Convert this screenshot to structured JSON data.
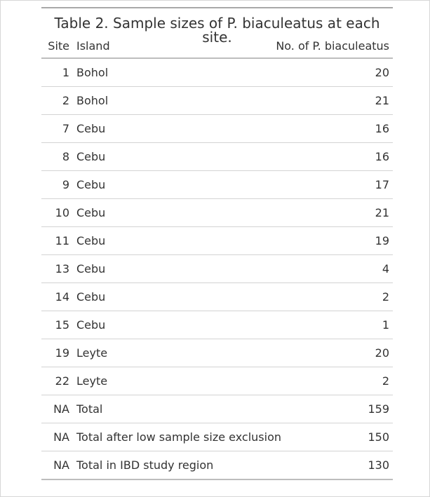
{
  "table": {
    "caption": "Table 2. Sample sizes of P. biaculeatus at each site.",
    "headers": {
      "site": "Site",
      "island": "Island",
      "count": "No. of P. biaculeatus"
    },
    "rows": [
      {
        "site": "1",
        "island": "Bohol",
        "count": "20"
      },
      {
        "site": "2",
        "island": "Bohol",
        "count": "21"
      },
      {
        "site": "7",
        "island": "Cebu",
        "count": "16"
      },
      {
        "site": "8",
        "island": "Cebu",
        "count": "16"
      },
      {
        "site": "9",
        "island": "Cebu",
        "count": "17"
      },
      {
        "site": "10",
        "island": "Cebu",
        "count": "21"
      },
      {
        "site": "11",
        "island": "Cebu",
        "count": "19"
      },
      {
        "site": "13",
        "island": "Cebu",
        "count": "4"
      },
      {
        "site": "14",
        "island": "Cebu",
        "count": "2"
      },
      {
        "site": "15",
        "island": "Cebu",
        "count": "1"
      },
      {
        "site": "19",
        "island": "Leyte",
        "count": "20"
      },
      {
        "site": "22",
        "island": "Leyte",
        "count": "2"
      },
      {
        "site": "NA",
        "island": "Total",
        "count": "159"
      },
      {
        "site": "NA",
        "island": "Total after low sample size exclusion",
        "count": "150"
      },
      {
        "site": "NA",
        "island": "Total in IBD study region",
        "count": "130"
      }
    ]
  }
}
